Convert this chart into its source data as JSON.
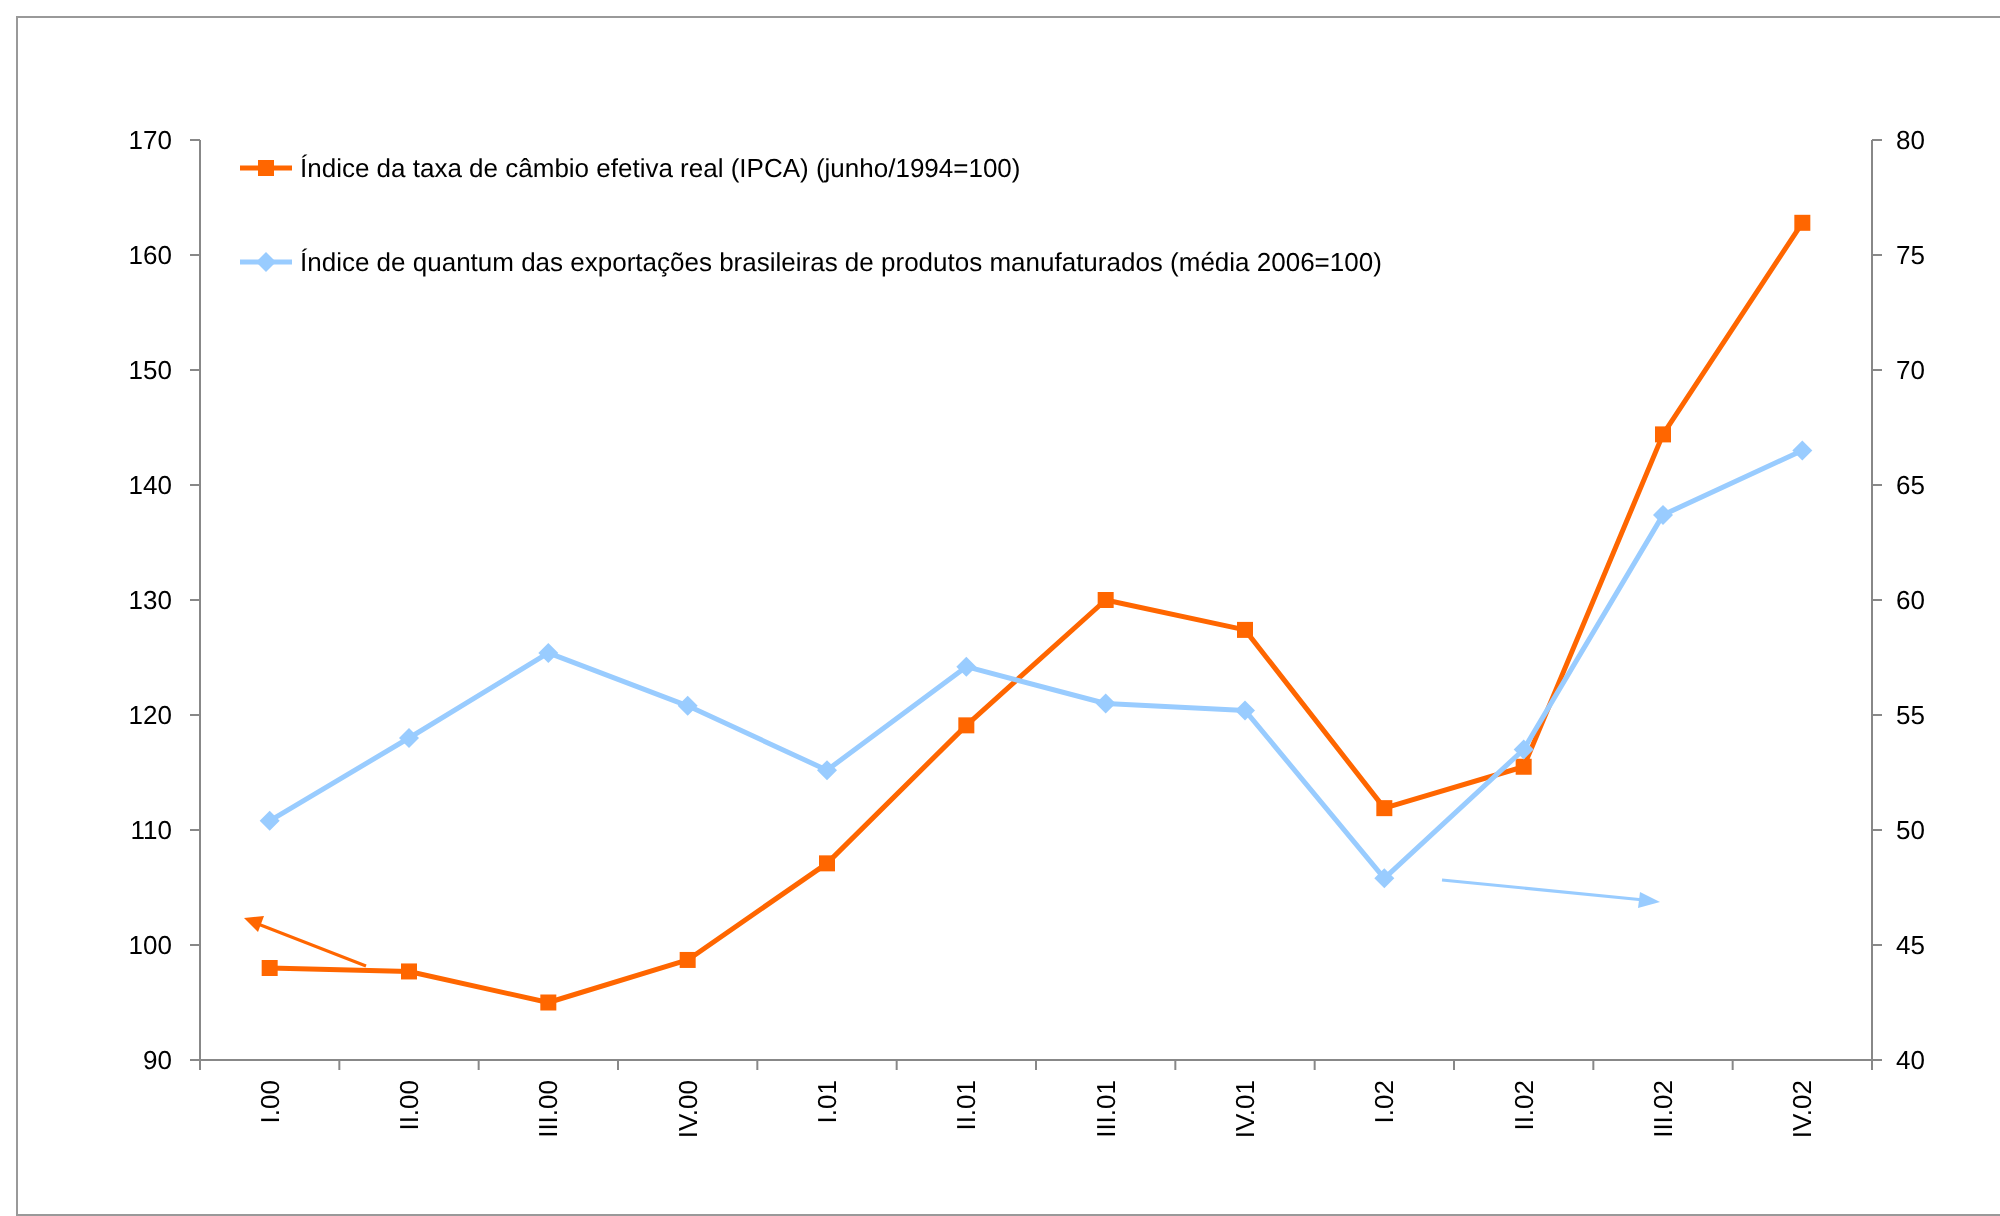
{
  "chart_data": {
    "type": "line",
    "categories": [
      "I.00",
      "II.00",
      "III.00",
      "IV.00",
      "I.01",
      "II.01",
      "III.01",
      "IV.01",
      "I.02",
      "II.02",
      "III.02",
      "IV.02"
    ],
    "series": [
      {
        "name": "Índice da taxa de câmbio efetiva real (IPCA) (junho/1994=100)",
        "color": "#ff6600",
        "marker": "square",
        "values": [
          98.0,
          97.7,
          95.0,
          98.7,
          107.1,
          119.1,
          130.0,
          127.4,
          111.9,
          115.5,
          144.4,
          162.8
        ]
      },
      {
        "name": "Índice de quantum das exportações brasileiras de produtos manufaturados (média 2006=100)",
        "color": "#99ccff",
        "marker": "diamond",
        "axis": "y2",
        "values": [
          50.4,
          54.0,
          57.7,
          55.4,
          52.6,
          57.1,
          55.5,
          55.2,
          47.9,
          53.5,
          63.7,
          66.5
        ]
      }
    ],
    "ylim": [
      90,
      170
    ],
    "yticks": [
      90,
      100,
      110,
      120,
      130,
      140,
      150,
      160,
      170
    ],
    "y2lim": [
      40,
      80
    ],
    "y2ticks": [
      40,
      45,
      50,
      55,
      60,
      65,
      70,
      75,
      80
    ],
    "legend": "top left",
    "grid": false
  }
}
